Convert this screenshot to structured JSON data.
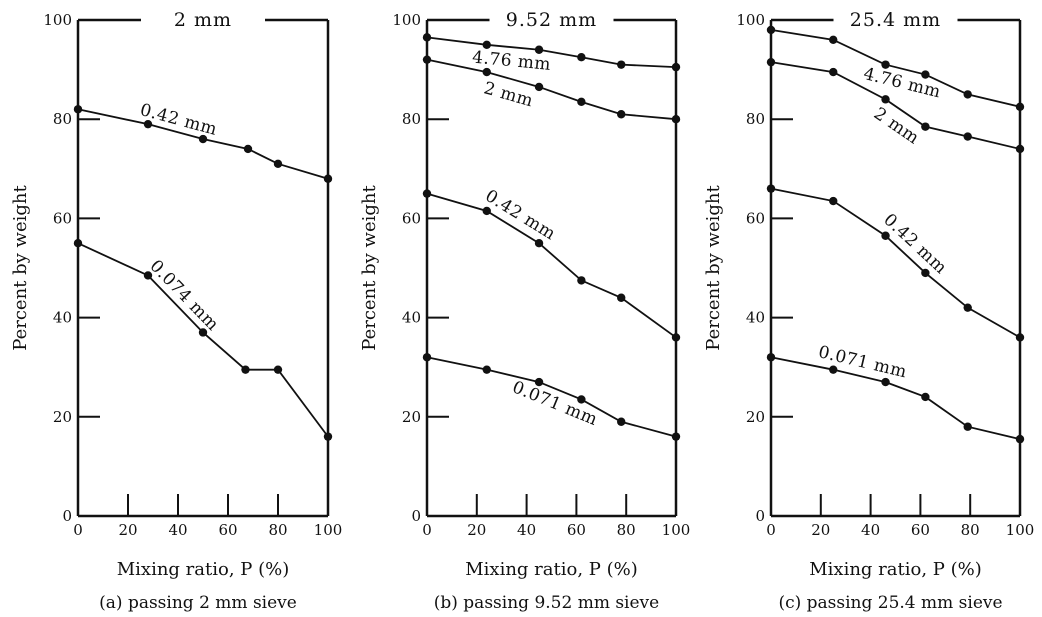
{
  "chart_data": [
    {
      "type": "line",
      "title": "2 mm",
      "xlabel": "Mixing ratio, P (%)",
      "ylabel": "Percent by weight",
      "caption": "(a) passing 2 mm sieve",
      "xlim": [
        0,
        100
      ],
      "ylim": [
        0,
        100
      ],
      "x_ticks": [
        "0",
        "20",
        "40",
        "60",
        "80",
        "100"
      ],
      "y_ticks": [
        "0",
        "20",
        "40",
        "60",
        "80",
        "100"
      ],
      "grid": false,
      "series": [
        {
          "name": "0.42 mm",
          "x": [
            0,
            28,
            50,
            68,
            80,
            100
          ],
          "y": [
            82,
            79,
            76,
            74,
            71,
            68
          ]
        },
        {
          "name": "0.074 mm",
          "x": [
            0,
            28,
            50,
            67,
            80,
            100
          ],
          "y": [
            55,
            48.5,
            37,
            29.5,
            29.5,
            16
          ]
        }
      ]
    },
    {
      "type": "line",
      "title": "9.52 mm",
      "xlabel": "Mixing ratio, P (%)",
      "ylabel": "Percent by weight",
      "caption": "(b) passing 9.52 mm sieve",
      "xlim": [
        0,
        100
      ],
      "ylim": [
        0,
        100
      ],
      "x_ticks": [
        "0",
        "20",
        "40",
        "60",
        "80",
        "100"
      ],
      "y_ticks": [
        "0",
        "20",
        "40",
        "60",
        "80",
        "100"
      ],
      "grid": false,
      "series": [
        {
          "name": "4.76 mm",
          "x": [
            0,
            24,
            45,
            62,
            78,
            100
          ],
          "y": [
            96.5,
            95,
            94,
            92.5,
            91,
            90.5
          ]
        },
        {
          "name": "2 mm",
          "x": [
            0,
            24,
            45,
            62,
            78,
            100
          ],
          "y": [
            92,
            89.5,
            86.5,
            83.5,
            81,
            80
          ]
        },
        {
          "name": "0.42 mm",
          "x": [
            0,
            24,
            45,
            62,
            78,
            100
          ],
          "y": [
            65,
            61.5,
            55,
            47.5,
            44,
            36
          ]
        },
        {
          "name": "0.071 mm",
          "x": [
            0,
            24,
            45,
            62,
            78,
            100
          ],
          "y": [
            32,
            29.5,
            27,
            23.5,
            19,
            16
          ]
        }
      ]
    },
    {
      "type": "line",
      "title": "25.4 mm",
      "xlabel": "Mixing ratio, P (%)",
      "ylabel": "Percent by weight",
      "caption": "(c) passing 25.4 mm sieve",
      "xlim": [
        0,
        100
      ],
      "ylim": [
        0,
        100
      ],
      "x_ticks": [
        "0",
        "20",
        "40",
        "60",
        "80",
        "100"
      ],
      "y_ticks": [
        "0",
        "20",
        "40",
        "60",
        "80",
        "100"
      ],
      "grid": false,
      "series": [
        {
          "name": "4.76 mm",
          "x": [
            0,
            25,
            46,
            62,
            79,
            100
          ],
          "y": [
            98,
            96,
            91,
            89,
            85,
            82.5
          ]
        },
        {
          "name": "2 mm",
          "x": [
            0,
            25,
            46,
            62,
            79,
            100
          ],
          "y": [
            91.5,
            89.5,
            84,
            78.5,
            76.5,
            74
          ]
        },
        {
          "name": "0.42 mm",
          "x": [
            0,
            25,
            46,
            62,
            79,
            100
          ],
          "y": [
            66,
            63.5,
            56.5,
            49,
            42,
            36
          ]
        },
        {
          "name": "0.071 mm",
          "x": [
            0,
            25,
            46,
            62,
            79,
            100
          ],
          "y": [
            32,
            29.5,
            27,
            24,
            18,
            15.5
          ]
        }
      ]
    }
  ]
}
